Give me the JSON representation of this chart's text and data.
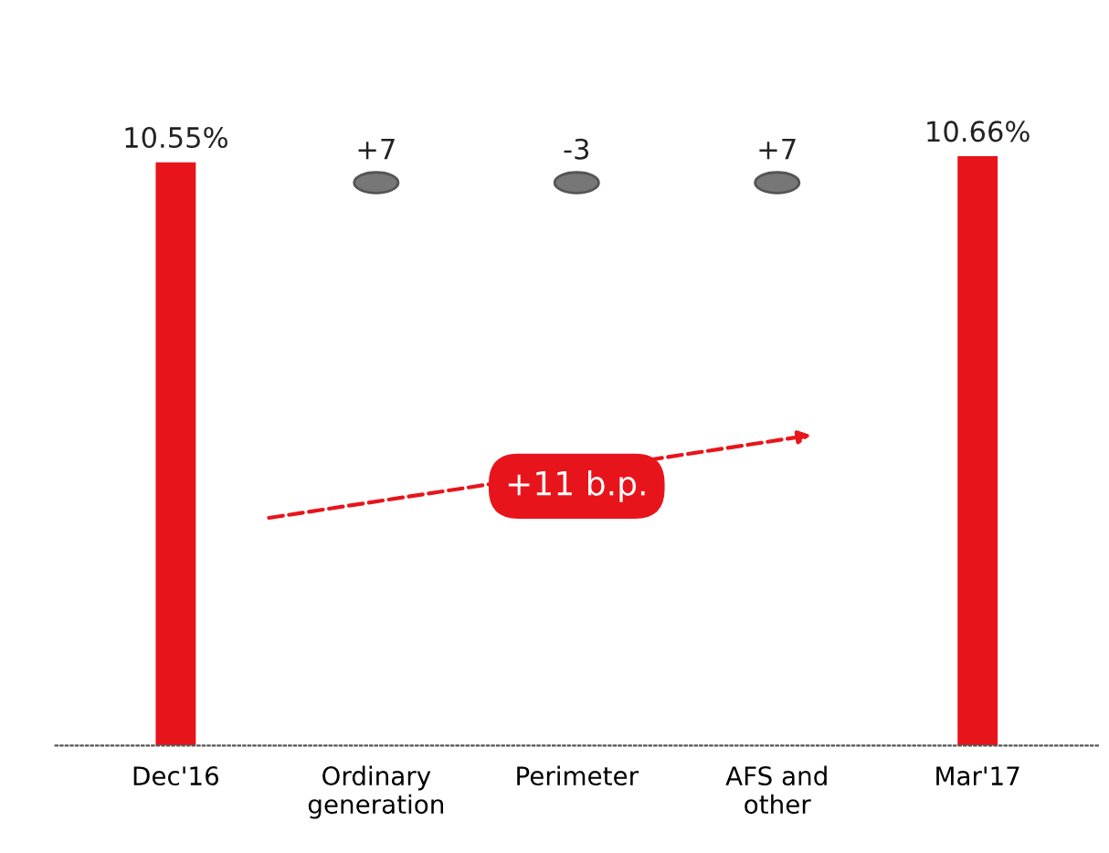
{
  "chart_data": {
    "type": "bar",
    "categories": [
      "Dec'16",
      "Ordinary\ngeneration",
      "Perimeter",
      "AFS and\nother",
      "Mar'17"
    ],
    "values": [
      10.55,
      null,
      null,
      null,
      10.66
    ],
    "colors": [
      "#e8141c",
      null,
      null,
      null,
      "#e8141c"
    ],
    "value_labels": [
      "10.55%",
      null,
      null,
      null,
      "10.66%"
    ],
    "tick_labels": "x",
    "annotations": [
      "+7",
      "-3",
      "+7",
      "+11 b.p."
    ]
  }
}
